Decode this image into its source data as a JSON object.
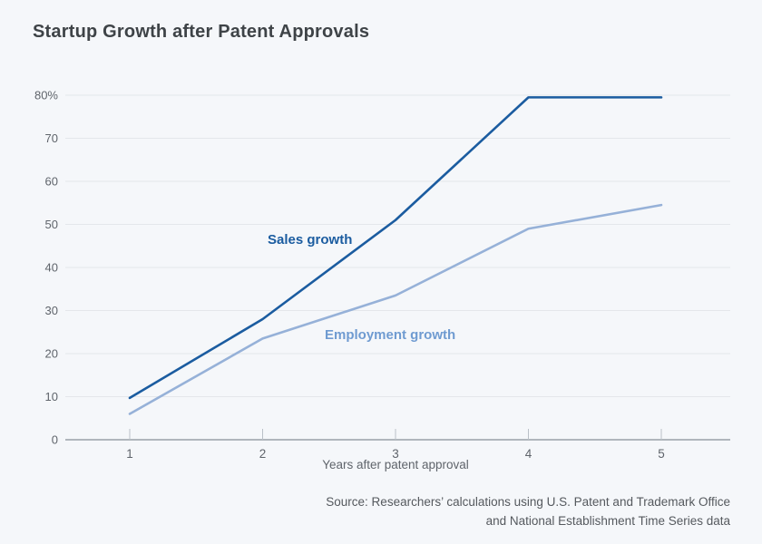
{
  "title": "Startup Growth after Patent Approvals",
  "colors": {
    "background": "#f5f7fa",
    "title_text": "#3e4347",
    "axis_text": "#5f646b",
    "gridline": "#e4e7eb",
    "axis_line": "#9aa1a8",
    "tick": "#bac0c8",
    "sales": "#1b5ca0",
    "employment": "#96b1d8",
    "employment_label": "#6f9bd1",
    "source_text": "#55595e"
  },
  "chart_data": {
    "type": "line",
    "title": "Startup Growth after Patent Approvals",
    "xlabel": "Years after patent approval",
    "ylabel": "",
    "x": [
      1,
      2,
      3,
      4,
      5
    ],
    "xtick_labels": [
      "1",
      "2",
      "3",
      "4",
      "5"
    ],
    "ytick_values": [
      0,
      10,
      20,
      30,
      40,
      50,
      60,
      70,
      80
    ],
    "ytick_labels": [
      "0",
      "10",
      "20",
      "30",
      "40",
      "50",
      "60",
      "70",
      "80%"
    ],
    "ylim": [
      0,
      80
    ],
    "xlim": [
      1,
      5
    ],
    "grid": "horizontal-only",
    "legend_position": "inline-labels-on-lines",
    "units": "percent",
    "series": [
      {
        "name": "Sales growth",
        "color_key": "sales",
        "values": [
          9.7,
          28,
          51,
          79.5,
          79.5
        ]
      },
      {
        "name": "Employment growth",
        "color_key": "employment",
        "values": [
          6,
          23.5,
          33.5,
          49,
          54.5
        ]
      }
    ]
  },
  "source": {
    "line1": "Source: Researchers’ calculations using U.S. Patent and Trademark Office",
    "line2": "and National Establishment Time Series data"
  }
}
